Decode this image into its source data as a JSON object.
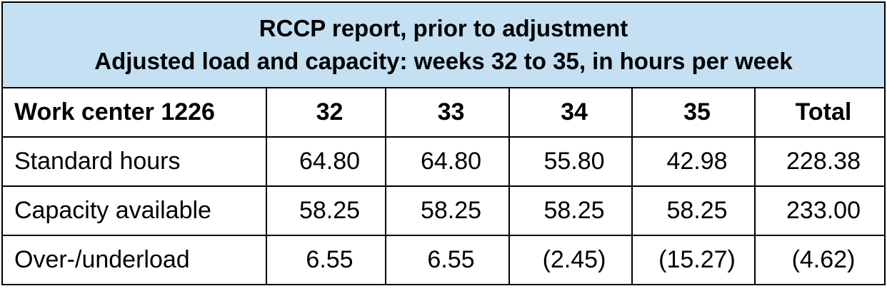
{
  "header": {
    "title_lines": [
      "RCCP report, prior to adjustment",
      "Adjusted load and capacity: weeks 32 to 35, in hours per week"
    ]
  },
  "table": {
    "columns": [
      "Work center 1226",
      "32",
      "33",
      "34",
      "35",
      "Total"
    ],
    "rows": [
      [
        "Standard hours",
        "64.80",
        "64.80",
        "55.80",
        "42.98",
        "228.38"
      ],
      [
        "Capacity available",
        "58.25",
        "58.25",
        "58.25",
        "58.25",
        "233.00"
      ],
      [
        "Over-/underload",
        "6.55",
        "6.55",
        "(2.45)",
        "(15.27)",
        "(4.62)"
      ]
    ]
  }
}
